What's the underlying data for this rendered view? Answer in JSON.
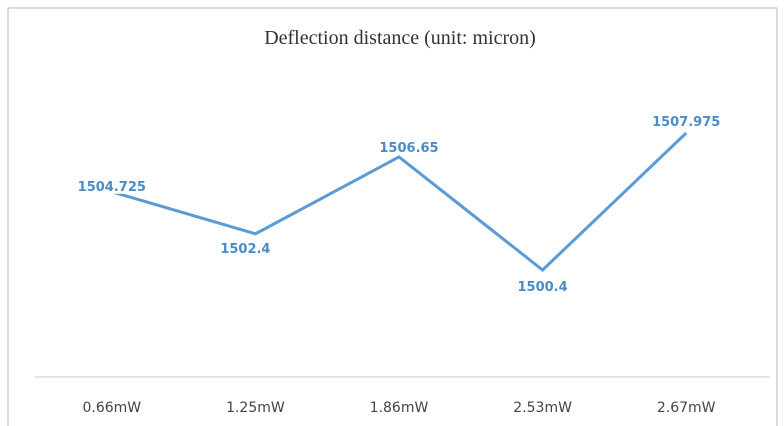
{
  "chart_data": {
    "type": "line",
    "title": "Deflection distance (unit: micron)",
    "categories": [
      "0.66mW",
      "1.25mW",
      "1.86mW",
      "2.53mW",
      "2.67mW"
    ],
    "values": [
      1504.725,
      1502.4,
      1506.65,
      1500.4,
      1507.975
    ],
    "color": "#5b9bd5",
    "label_color": "#4a8cc8"
  }
}
